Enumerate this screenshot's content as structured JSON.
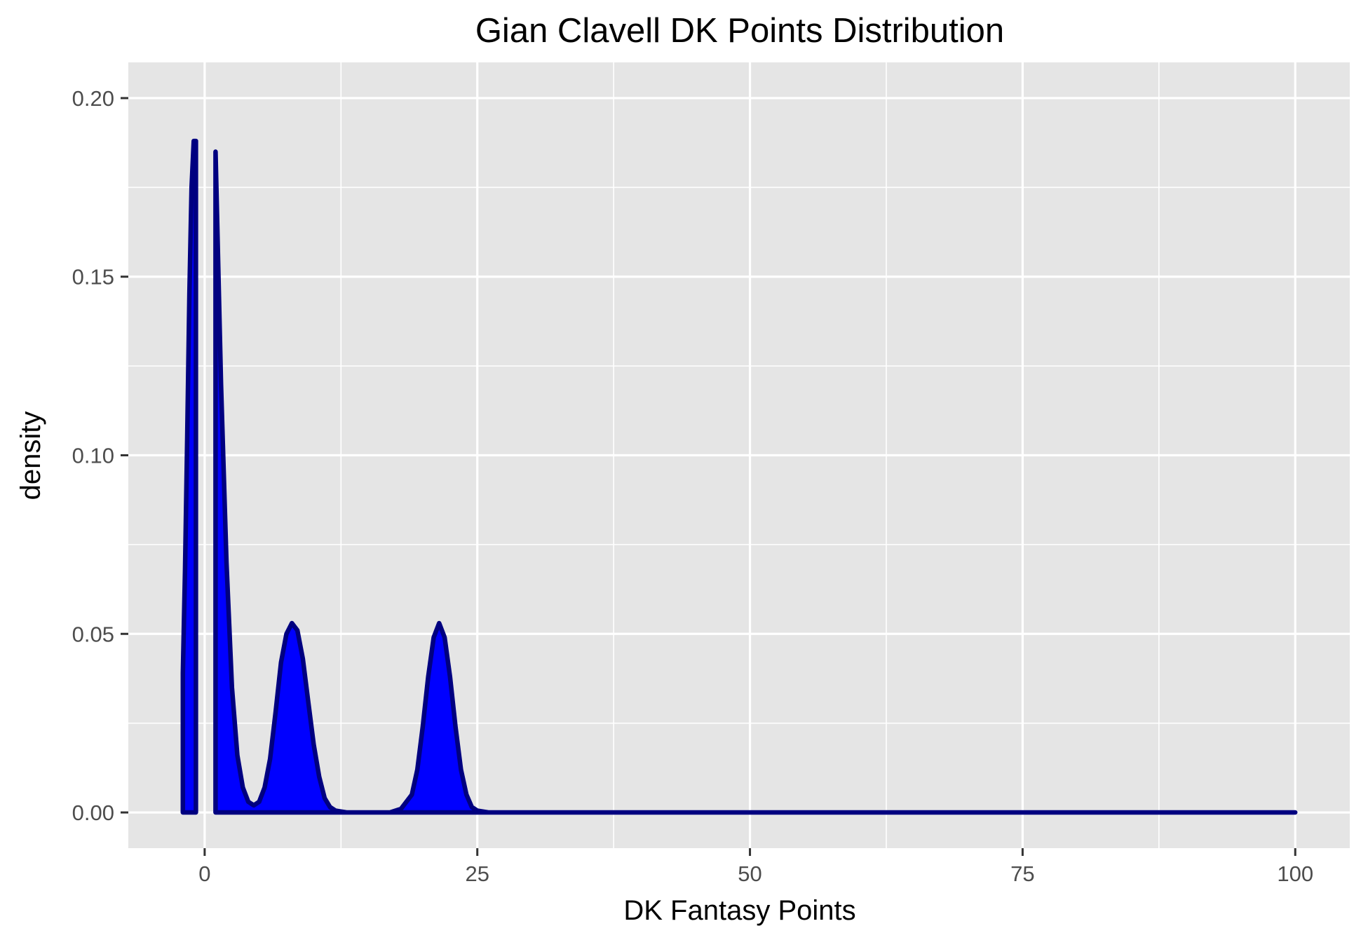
{
  "chart_data": {
    "type": "area",
    "title": "Gian Clavell DK Points Distribution",
    "xlabel": "DK Fantasy Points",
    "ylabel": "density",
    "xlim": [
      -7,
      105
    ],
    "ylim": [
      -0.01,
      0.21
    ],
    "x_ticks": [
      0,
      25,
      50,
      75,
      100
    ],
    "x_tick_labels": [
      "0",
      "25",
      "50",
      "75",
      "100"
    ],
    "y_ticks": [
      0.0,
      0.05,
      0.1,
      0.15,
      0.2
    ],
    "y_tick_labels": [
      "0.00",
      "0.05",
      "0.10",
      "0.15",
      "0.20"
    ],
    "grid": true,
    "legend": "none",
    "colors": {
      "panel_background": "#e5e5e5",
      "gridline": "#ffffff",
      "fill": "#0000ff",
      "outline": "#000080"
    },
    "series": [
      {
        "segments": [
          {
            "x": [
              -2.0,
              -1.8,
              -1.6,
              -1.4,
              -1.2,
              -1.0,
              -0.8
            ],
            "y": [
              0.039,
              0.068,
              0.105,
              0.145,
              0.175,
              0.188,
              0.188
            ]
          },
          {
            "x": [
              1.0,
              1.5,
              2.0,
              2.5,
              3.0,
              3.5,
              4.0,
              4.5,
              5.0,
              5.5,
              6.0,
              6.5,
              7.0,
              7.5,
              8.0,
              8.5,
              9.0,
              9.5,
              10.0,
              10.5,
              11.0,
              11.5,
              12.0,
              13.0,
              15.0,
              17.0,
              18.0,
              19.0,
              19.5,
              20.0,
              20.5,
              21.0,
              21.5,
              22.0,
              22.5,
              23.0,
              23.5,
              24.0,
              24.5,
              25.0,
              26.0,
              30.0,
              50.0,
              75.0,
              100.0
            ],
            "y": [
              0.185,
              0.12,
              0.07,
              0.035,
              0.016,
              0.007,
              0.003,
              0.002,
              0.003,
              0.007,
              0.015,
              0.028,
              0.042,
              0.05,
              0.053,
              0.051,
              0.043,
              0.031,
              0.019,
              0.01,
              0.004,
              0.0015,
              0.0005,
              0.0,
              0.0,
              0.0,
              0.001,
              0.005,
              0.012,
              0.024,
              0.038,
              0.049,
              0.053,
              0.049,
              0.038,
              0.024,
              0.012,
              0.005,
              0.0015,
              0.0005,
              0.0,
              0.0,
              0.0,
              0.0,
              0.0
            ]
          }
        ]
      }
    ]
  }
}
